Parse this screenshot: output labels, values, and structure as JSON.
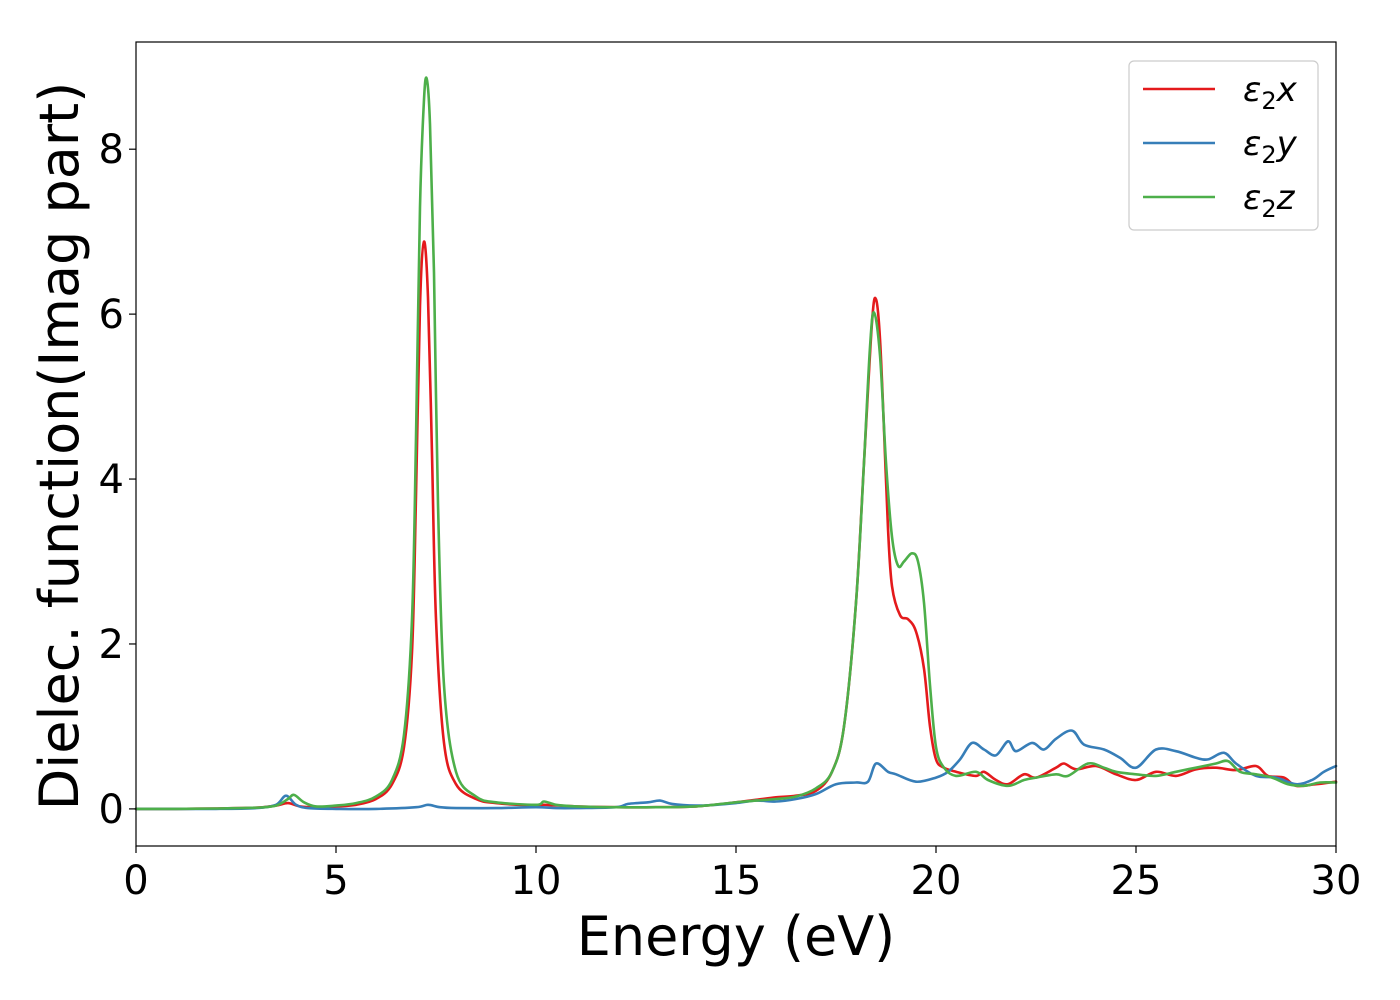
{
  "chart_data": {
    "type": "line",
    "title": "",
    "xlabel": "Energy (eV)",
    "ylabel": "Dielec. function(Imag part)",
    "xlim": [
      0,
      30
    ],
    "ylim": [
      -0.45,
      9.3
    ],
    "xticks": [
      0,
      5,
      10,
      15,
      20,
      25,
      30
    ],
    "yticks": [
      0,
      2,
      4,
      6,
      8
    ],
    "grid": false,
    "legend_position": "top-right",
    "series": [
      {
        "name": "ε2x",
        "legend_base": "ε",
        "legend_sub": "2",
        "legend_suffix": "x",
        "color": "#e41a1c",
        "points": [
          [
            0,
            0
          ],
          [
            1,
            0
          ],
          [
            2,
            0.005
          ],
          [
            3,
            0.015
          ],
          [
            3.5,
            0.04
          ],
          [
            3.8,
            0.07
          ],
          [
            4.1,
            0.03
          ],
          [
            4.5,
            0.02
          ],
          [
            5,
            0.03
          ],
          [
            5.5,
            0.05
          ],
          [
            6,
            0.12
          ],
          [
            6.4,
            0.3
          ],
          [
            6.7,
            0.75
          ],
          [
            6.9,
            1.9
          ],
          [
            7.0,
            3.8
          ],
          [
            7.1,
            6.1
          ],
          [
            7.2,
            6.88
          ],
          [
            7.3,
            6.2
          ],
          [
            7.4,
            4.3
          ],
          [
            7.5,
            2.3
          ],
          [
            7.7,
            0.8
          ],
          [
            8,
            0.3
          ],
          [
            8.5,
            0.12
          ],
          [
            9,
            0.07
          ],
          [
            10,
            0.04
          ],
          [
            10.2,
            0.05
          ],
          [
            11,
            0.03
          ],
          [
            12,
            0.02
          ],
          [
            13,
            0.02
          ],
          [
            14,
            0.03
          ],
          [
            15,
            0.08
          ],
          [
            15.5,
            0.11
          ],
          [
            16,
            0.14
          ],
          [
            16.5,
            0.16
          ],
          [
            17,
            0.22
          ],
          [
            17.4,
            0.45
          ],
          [
            17.7,
            1.0
          ],
          [
            18.0,
            2.5
          ],
          [
            18.2,
            4.2
          ],
          [
            18.4,
            5.9
          ],
          [
            18.5,
            6.18
          ],
          [
            18.6,
            5.7
          ],
          [
            18.7,
            4.6
          ],
          [
            18.8,
            3.4
          ],
          [
            18.9,
            2.7
          ],
          [
            19.1,
            2.35
          ],
          [
            19.3,
            2.3
          ],
          [
            19.5,
            2.15
          ],
          [
            19.7,
            1.7
          ],
          [
            19.85,
            1.0
          ],
          [
            20,
            0.6
          ],
          [
            20.2,
            0.5
          ],
          [
            20.5,
            0.45
          ],
          [
            21,
            0.4
          ],
          [
            21.2,
            0.45
          ],
          [
            21.5,
            0.35
          ],
          [
            21.8,
            0.3
          ],
          [
            22.2,
            0.42
          ],
          [
            22.5,
            0.38
          ],
          [
            23,
            0.5
          ],
          [
            23.2,
            0.55
          ],
          [
            23.5,
            0.48
          ],
          [
            24,
            0.52
          ],
          [
            24.5,
            0.42
          ],
          [
            25,
            0.35
          ],
          [
            25.5,
            0.45
          ],
          [
            26,
            0.4
          ],
          [
            26.5,
            0.48
          ],
          [
            27,
            0.5
          ],
          [
            27.5,
            0.47
          ],
          [
            28,
            0.52
          ],
          [
            28.3,
            0.4
          ],
          [
            28.7,
            0.38
          ],
          [
            29,
            0.28
          ],
          [
            29.5,
            0.3
          ],
          [
            30,
            0.33
          ]
        ]
      },
      {
        "name": "ε2y",
        "legend_base": "ε",
        "legend_sub": "2",
        "legend_suffix": "y",
        "color": "#377eb8",
        "points": [
          [
            0,
            0
          ],
          [
            2,
            0
          ],
          [
            3,
            0.01
          ],
          [
            3.5,
            0.05
          ],
          [
            3.75,
            0.16
          ],
          [
            4.0,
            0.05
          ],
          [
            4.3,
            0.01
          ],
          [
            5,
            0
          ],
          [
            6,
            0
          ],
          [
            7,
            0.02
          ],
          [
            7.3,
            0.05
          ],
          [
            7.6,
            0.02
          ],
          [
            8,
            0.01
          ],
          [
            9,
            0.01
          ],
          [
            10,
            0.02
          ],
          [
            10.5,
            0.01
          ],
          [
            11,
            0.01
          ],
          [
            12,
            0.02
          ],
          [
            12.3,
            0.06
          ],
          [
            12.8,
            0.08
          ],
          [
            13.1,
            0.1
          ],
          [
            13.4,
            0.06
          ],
          [
            14,
            0.04
          ],
          [
            14.5,
            0.05
          ],
          [
            15,
            0.07
          ],
          [
            15.5,
            0.1
          ],
          [
            16,
            0.09
          ],
          [
            16.5,
            0.12
          ],
          [
            17,
            0.18
          ],
          [
            17.5,
            0.3
          ],
          [
            18,
            0.32
          ],
          [
            18.3,
            0.33
          ],
          [
            18.5,
            0.55
          ],
          [
            18.8,
            0.45
          ],
          [
            19,
            0.42
          ],
          [
            19.5,
            0.33
          ],
          [
            20,
            0.38
          ],
          [
            20.3,
            0.45
          ],
          [
            20.6,
            0.6
          ],
          [
            20.9,
            0.8
          ],
          [
            21.2,
            0.72
          ],
          [
            21.5,
            0.65
          ],
          [
            21.8,
            0.82
          ],
          [
            22,
            0.7
          ],
          [
            22.4,
            0.8
          ],
          [
            22.7,
            0.72
          ],
          [
            23,
            0.85
          ],
          [
            23.4,
            0.95
          ],
          [
            23.7,
            0.78
          ],
          [
            24.2,
            0.72
          ],
          [
            24.6,
            0.62
          ],
          [
            25,
            0.5
          ],
          [
            25.5,
            0.72
          ],
          [
            26,
            0.7
          ],
          [
            26.5,
            0.62
          ],
          [
            26.8,
            0.6
          ],
          [
            27.2,
            0.68
          ],
          [
            27.5,
            0.55
          ],
          [
            28,
            0.4
          ],
          [
            28.5,
            0.38
          ],
          [
            29,
            0.3
          ],
          [
            29.4,
            0.35
          ],
          [
            29.7,
            0.45
          ],
          [
            30,
            0.52
          ]
        ]
      },
      {
        "name": "ε2z",
        "legend_base": "ε",
        "legend_sub": "2",
        "legend_suffix": "z",
        "color": "#4daf4a",
        "points": [
          [
            0,
            0
          ],
          [
            1,
            0
          ],
          [
            2,
            0.005
          ],
          [
            3,
            0.015
          ],
          [
            3.5,
            0.04
          ],
          [
            3.8,
            0.12
          ],
          [
            3.95,
            0.17
          ],
          [
            4.2,
            0.08
          ],
          [
            4.5,
            0.03
          ],
          [
            5,
            0.04
          ],
          [
            5.5,
            0.07
          ],
          [
            6,
            0.15
          ],
          [
            6.4,
            0.35
          ],
          [
            6.7,
            0.9
          ],
          [
            6.9,
            2.3
          ],
          [
            7.0,
            4.5
          ],
          [
            7.1,
            7.3
          ],
          [
            7.2,
            8.6
          ],
          [
            7.27,
            8.85
          ],
          [
            7.35,
            8.3
          ],
          [
            7.45,
            6.5
          ],
          [
            7.55,
            3.7
          ],
          [
            7.7,
            1.5
          ],
          [
            8,
            0.45
          ],
          [
            8.5,
            0.15
          ],
          [
            9,
            0.08
          ],
          [
            10,
            0.05
          ],
          [
            10.2,
            0.09
          ],
          [
            10.5,
            0.05
          ],
          [
            11,
            0.03
          ],
          [
            12,
            0.02
          ],
          [
            13,
            0.02
          ],
          [
            14,
            0.03
          ],
          [
            15,
            0.08
          ],
          [
            15.5,
            0.1
          ],
          [
            16,
            0.12
          ],
          [
            16.5,
            0.15
          ],
          [
            17,
            0.25
          ],
          [
            17.4,
            0.45
          ],
          [
            17.7,
            1.0
          ],
          [
            18.0,
            2.5
          ],
          [
            18.2,
            4.2
          ],
          [
            18.35,
            5.6
          ],
          [
            18.45,
            6.02
          ],
          [
            18.6,
            5.5
          ],
          [
            18.75,
            4.2
          ],
          [
            18.9,
            3.3
          ],
          [
            19.05,
            2.95
          ],
          [
            19.2,
            3.0
          ],
          [
            19.4,
            3.1
          ],
          [
            19.55,
            3.0
          ],
          [
            19.7,
            2.5
          ],
          [
            19.85,
            1.5
          ],
          [
            20,
            0.75
          ],
          [
            20.2,
            0.5
          ],
          [
            20.5,
            0.4
          ],
          [
            21,
            0.45
          ],
          [
            21.3,
            0.35
          ],
          [
            21.8,
            0.28
          ],
          [
            22.2,
            0.35
          ],
          [
            22.5,
            0.38
          ],
          [
            23,
            0.42
          ],
          [
            23.3,
            0.4
          ],
          [
            23.8,
            0.55
          ],
          [
            24.2,
            0.5
          ],
          [
            24.5,
            0.45
          ],
          [
            25,
            0.42
          ],
          [
            25.5,
            0.4
          ],
          [
            26,
            0.45
          ],
          [
            26.5,
            0.5
          ],
          [
            27,
            0.55
          ],
          [
            27.3,
            0.58
          ],
          [
            27.6,
            0.45
          ],
          [
            28,
            0.42
          ],
          [
            28.4,
            0.38
          ],
          [
            28.8,
            0.3
          ],
          [
            29.2,
            0.28
          ],
          [
            29.6,
            0.32
          ],
          [
            30,
            0.32
          ]
        ]
      }
    ]
  }
}
